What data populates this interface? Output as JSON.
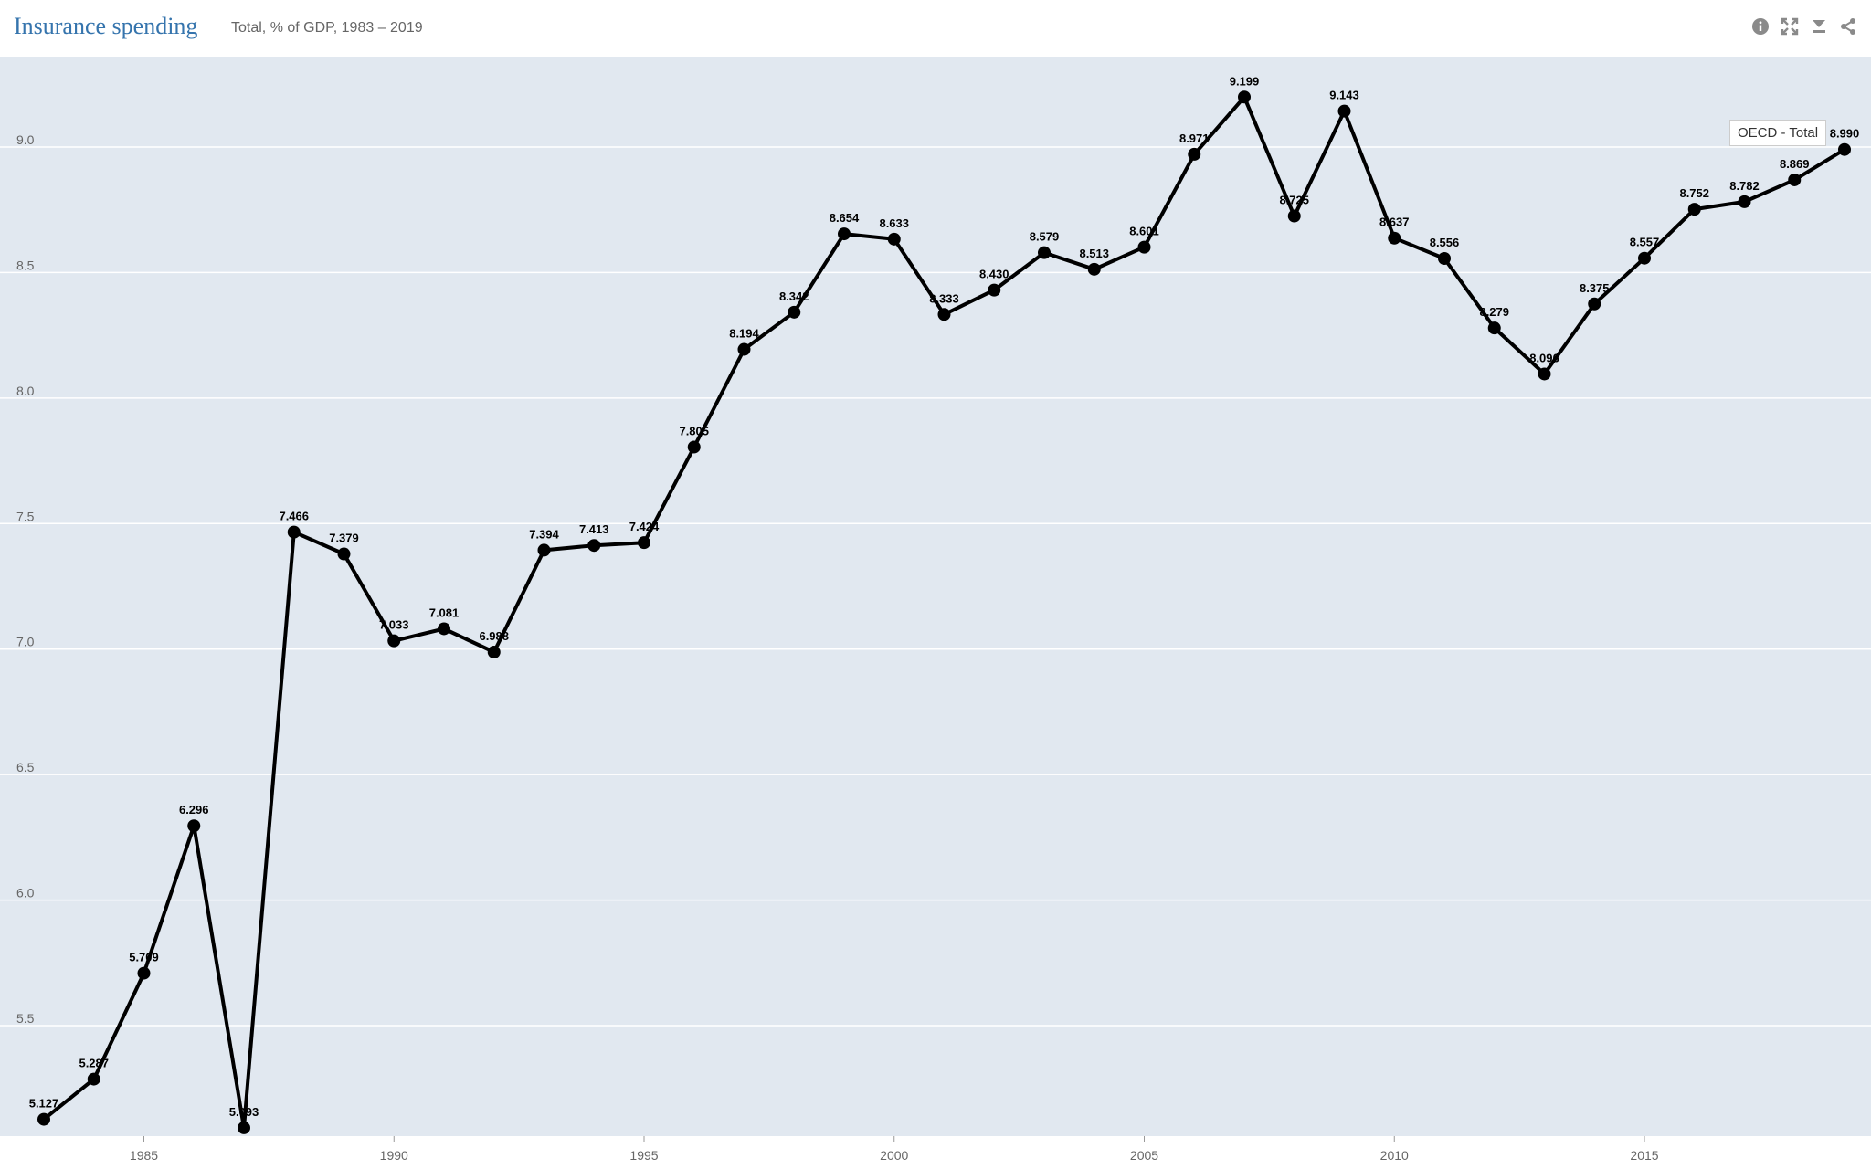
{
  "header": {
    "title": "Insurance spending",
    "subtitle": "Total, % of GDP, 1983 – 2019"
  },
  "toolbar": {
    "icons": [
      "info-icon",
      "fullscreen-icon",
      "download-icon",
      "share-icon"
    ]
  },
  "tooltip": {
    "text": "OECD - Total"
  },
  "colors": {
    "plot_background": "#e1e8f0",
    "line": "#000000",
    "title": "#3574ad",
    "gridline": "#ffffff"
  },
  "chart_data": {
    "type": "line",
    "title": "Insurance spending",
    "subtitle": "Total, % of GDP, 1983 – 2019",
    "xlabel": "",
    "ylabel": "",
    "xlim": [
      1983,
      2019
    ],
    "ylim": [
      5.06,
      9.36
    ],
    "grid": true,
    "x_ticks": [
      1985,
      1990,
      1995,
      2000,
      2005,
      2010,
      2015
    ],
    "y_ticks": [
      5.5,
      6.0,
      6.5,
      7.0,
      7.5,
      8.0,
      8.5,
      9.0
    ],
    "y_tick_labels": [
      "5.5",
      "6.0",
      "6.5",
      "7.0",
      "7.5",
      "8.0",
      "8.5",
      "9.0"
    ],
    "series": [
      {
        "name": "OECD - Total",
        "x": [
          1983,
          1984,
          1985,
          1986,
          1987,
          1988,
          1989,
          1990,
          1991,
          1992,
          1993,
          1994,
          1995,
          1996,
          1997,
          1998,
          1999,
          2000,
          2001,
          2002,
          2003,
          2004,
          2005,
          2006,
          2007,
          2008,
          2009,
          2010,
          2011,
          2012,
          2013,
          2014,
          2015,
          2016,
          2017,
          2018,
          2019
        ],
        "y": [
          5.127,
          5.287,
          5.709,
          6.296,
          5.093,
          7.466,
          7.379,
          7.033,
          7.081,
          6.988,
          7.394,
          7.413,
          7.424,
          7.805,
          8.194,
          8.342,
          8.654,
          8.633,
          8.333,
          8.43,
          8.579,
          8.513,
          8.601,
          8.971,
          9.199,
          8.725,
          9.143,
          8.637,
          8.556,
          8.279,
          8.096,
          8.375,
          8.557,
          8.752,
          8.782,
          8.869,
          8.99
        ],
        "labels": [
          "5.127",
          "5.287",
          "5.709",
          "6.296",
          "5.093",
          "7.466",
          "7.379",
          "7.033",
          "7.081",
          "6.988",
          "7.394",
          "7.413",
          "7.424",
          "7.805",
          "8.194",
          "8.342",
          "8.654",
          "8.633",
          "8.333",
          "8.430",
          "8.579",
          "8.513",
          "8.601",
          "8.971",
          "9.199",
          "8.725",
          "9.143",
          "8.637",
          "8.556",
          "8.279",
          "8.096",
          "8.375",
          "8.557",
          "8.752",
          "8.782",
          "8.869",
          "8.990"
        ]
      }
    ]
  }
}
